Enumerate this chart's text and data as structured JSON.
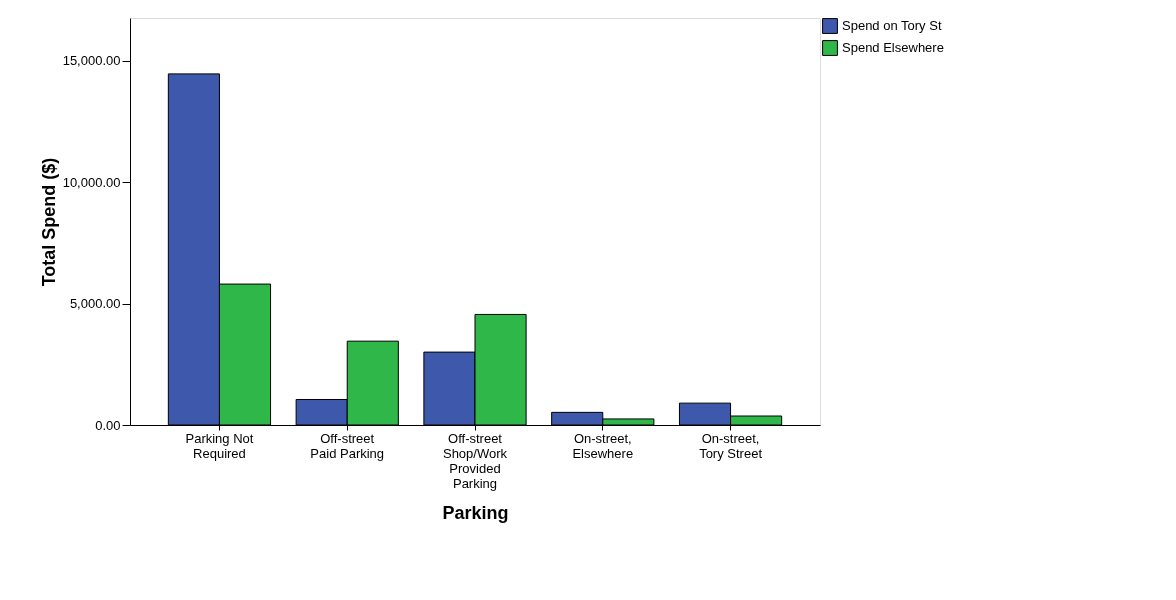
{
  "chart_data": {
    "type": "bar",
    "xlabel": "Parking",
    "ylabel": "Total Spend ($)",
    "categories": [
      "Parking Not\nRequired",
      "Off-street\nPaid Parking",
      "Off-street\nShop/Work\nProvided\nParking",
      "On-street,\nElsewhere",
      "On-street,\nTory Street"
    ],
    "series": [
      {
        "name": "Spend on Tory St",
        "color": "#3e58ac",
        "values": [
          14450,
          1050,
          3000,
          520,
          900
        ]
      },
      {
        "name": "Spend Elsewhere",
        "color": "#2fb74a",
        "values": [
          5800,
          3450,
          4550,
          250,
          370
        ]
      }
    ],
    "ylim": [
      0,
      16750
    ],
    "yticks": [
      {
        "value": 0,
        "label": "0.00"
      },
      {
        "value": 5000,
        "label": "5,000.00"
      },
      {
        "value": 10000,
        "label": "10,000.00"
      },
      {
        "value": 15000,
        "label": "15,000.00"
      }
    ],
    "grid": false,
    "legend": "top right"
  }
}
